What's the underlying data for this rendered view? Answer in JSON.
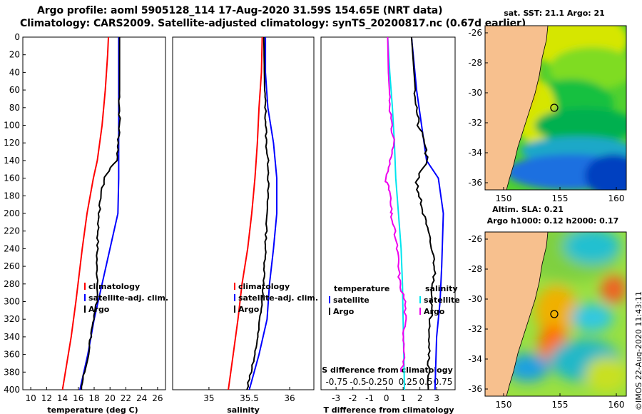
{
  "header": {
    "line1": "Argo profile: aoml 5905128_114 17-Aug-2020 31.59S 154.65E (NRT data)",
    "line2": "Climatology: CARS2009. Satellite-adjusted climatology: synTS_20200817.nc (0.67d earlier)"
  },
  "colors": {
    "climatology": "#ff0000",
    "satellite": "#0000ff",
    "argo": "#000000",
    "s_satellite": "#00e5ee",
    "s_argo": "#ee00ee",
    "land": "#f7c08e"
  },
  "credit": "©IMOS 22-Aug-2020 11:43:11",
  "chart_data": [
    {
      "type": "line",
      "id": "temperature",
      "xlabel": "temperature (deg C)",
      "xlim": [
        9,
        27
      ],
      "ylim": [
        0,
        400
      ],
      "yticks": [
        0,
        20,
        40,
        60,
        80,
        100,
        120,
        140,
        160,
        180,
        200,
        220,
        240,
        260,
        280,
        300,
        320,
        340,
        360,
        380,
        400
      ],
      "xticks": [
        10,
        12,
        14,
        16,
        18,
        20,
        22,
        24,
        26
      ],
      "legend": [
        "climatology",
        "satellite-adj. clim.",
        "Argo"
      ],
      "series": [
        {
          "name": "climatology",
          "depth": [
            0,
            20,
            60,
            100,
            140,
            160,
            200,
            240,
            300,
            340,
            400
          ],
          "values": [
            19.8,
            19.7,
            19.4,
            19.0,
            18.4,
            17.9,
            17.1,
            16.5,
            15.7,
            15.1,
            14.0
          ]
        },
        {
          "name": "satellite-adj. clim.",
          "depth": [
            0,
            40,
            80,
            120,
            160,
            200,
            240,
            280,
            320,
            360,
            400
          ],
          "values": [
            21.1,
            21.1,
            21.1,
            21.1,
            21.1,
            21.0,
            20.0,
            19.0,
            18.0,
            17.2,
            16.2
          ]
        },
        {
          "name": "Argo",
          "depth": [
            0,
            100,
            140,
            155,
            175,
            200,
            240,
            260,
            280,
            300,
            320,
            340,
            360,
            380,
            400
          ],
          "values": [
            21.2,
            21.2,
            20.9,
            19.5,
            18.9,
            18.6,
            18.4,
            18.3,
            18.5,
            18.3,
            17.9,
            17.6,
            17.2,
            16.8,
            16.4
          ]
        }
      ]
    },
    {
      "type": "line",
      "id": "salinity",
      "xlabel": "salinity",
      "xlim": [
        34.55,
        36.3
      ],
      "ylim": [
        0,
        400
      ],
      "xticks": [
        35,
        35.5,
        36
      ],
      "legend": [
        "climatology",
        "satellite-adj. clim.",
        "Argo"
      ],
      "series": [
        {
          "name": "climatology",
          "depth": [
            0,
            40,
            80,
            120,
            160,
            200,
            240,
            280,
            320,
            360,
            400
          ],
          "values": [
            35.66,
            35.65,
            35.62,
            35.6,
            35.57,
            35.53,
            35.48,
            35.41,
            35.36,
            35.3,
            35.24
          ]
        },
        {
          "name": "satellite-adj. clim.",
          "depth": [
            0,
            40,
            80,
            120,
            160,
            200,
            240,
            280,
            320,
            360,
            400
          ],
          "values": [
            35.7,
            35.7,
            35.73,
            35.8,
            35.84,
            35.84,
            35.8,
            35.75,
            35.72,
            35.62,
            35.5
          ]
        },
        {
          "name": "Argo",
          "depth": [
            0,
            60,
            80,
            120,
            150,
            200,
            240,
            280,
            320,
            360,
            400
          ],
          "values": [
            35.68,
            35.69,
            35.7,
            35.71,
            35.74,
            35.72,
            35.7,
            35.68,
            35.63,
            35.57,
            35.47
          ]
        }
      ]
    },
    {
      "type": "line",
      "id": "difference",
      "xlabel": "T difference from climatology",
      "s_title": "S difference from climatology",
      "xlim": [
        -3.9,
        4.1
      ],
      "ylim": [
        0,
        400
      ],
      "xticks": [
        -3,
        -2,
        -1,
        0,
        1,
        2,
        3
      ],
      "s_ticks": [
        "-0.75",
        "-0.5",
        "-0.25",
        "0",
        "0.25",
        "0.5",
        "0.75"
      ],
      "legend_t_title": "temperature",
      "legend_s_title": "salinity",
      "legend": [
        "satellite",
        "Argo",
        "satellite",
        "Argo"
      ],
      "series": [
        {
          "name": "T satellite",
          "depth": [
            0,
            20,
            60,
            100,
            140,
            160,
            200,
            260,
            300,
            340,
            400
          ],
          "values": [
            1.5,
            1.6,
            1.8,
            2.1,
            2.4,
            3.1,
            3.4,
            3.3,
            3.2,
            3.0,
            2.9
          ]
        },
        {
          "name": "T Argo",
          "depth": [
            0,
            80,
            100,
            120,
            140,
            155,
            165,
            200,
            240,
            260,
            300,
            340,
            400
          ],
          "values": [
            1.5,
            1.8,
            1.9,
            2.3,
            2.4,
            2.0,
            1.8,
            2.2,
            2.7,
            2.9,
            2.7,
            2.6,
            2.5
          ]
        },
        {
          "name": "S satellite",
          "depth": [
            0,
            40,
            80,
            120,
            160,
            200,
            240,
            280,
            320,
            360,
            400
          ],
          "values": [
            0.02,
            0.05,
            0.09,
            0.12,
            0.14,
            0.18,
            0.22,
            0.24,
            0.25,
            0.26,
            0.27
          ]
        },
        {
          "name": "S Argo",
          "depth": [
            0,
            40,
            80,
            100,
            120,
            140,
            165,
            175,
            200,
            220,
            240,
            280,
            300,
            320,
            340,
            360,
            380
          ],
          "values": [
            0.02,
            0.03,
            0.06,
            0.07,
            0.12,
            0.05,
            0.0,
            0.05,
            0.07,
            0.12,
            0.16,
            0.2,
            0.28,
            0.28,
            0.26,
            0.28,
            0.22
          ]
        }
      ]
    },
    {
      "type": "heatmap",
      "id": "sst_map",
      "title": "sat. SST: 21.1  Argo: 21",
      "xticks": [
        150,
        155,
        160
      ],
      "yticks": [
        -26,
        -28,
        -30,
        -32,
        -34,
        -36
      ]
    },
    {
      "type": "heatmap",
      "id": "sla_map",
      "title1": "Altim. SLA: 0.21",
      "title2": "Argo h1000: 0.12 h2000: 0.17",
      "xticks": [
        150,
        155,
        160
      ],
      "yticks": [
        -26,
        -28,
        -30,
        -32,
        -34,
        -36
      ]
    }
  ]
}
